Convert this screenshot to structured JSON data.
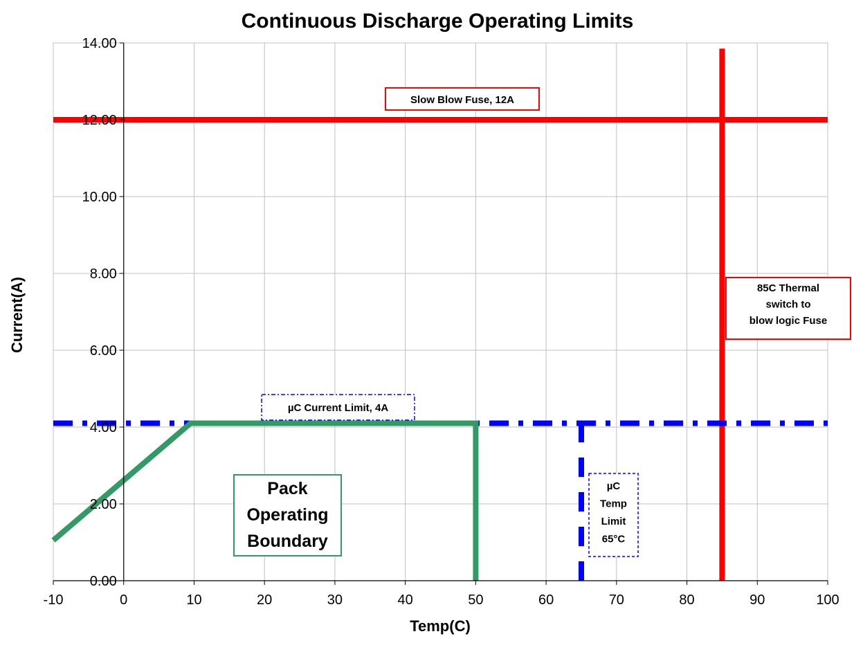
{
  "chart_data": {
    "type": "line",
    "title": "Continuous Discharge Operating Limits",
    "xlabel": "Temp(C)",
    "ylabel": "Current(A)",
    "xlim": [
      -10,
      100
    ],
    "ylim": [
      0,
      14
    ],
    "xticks": [
      "-10",
      "0",
      "10",
      "20",
      "30",
      "40",
      "50",
      "60",
      "70",
      "80",
      "90",
      "100"
    ],
    "yticks": [
      "0.00",
      "2.00",
      "4.00",
      "6.00",
      "8.00",
      "10.00",
      "12.00",
      "14.00"
    ],
    "grid": true,
    "series": [
      {
        "name": "",
        "style": "solid",
        "color": "#ff0000",
        "points": [
          [
            -10,
            12
          ],
          [
            100,
            12
          ]
        ]
      },
      {
        "name": "",
        "style": "solid",
        "color": "#ff0000",
        "points": [
          [
            85,
            0
          ],
          [
            85,
            13.85
          ]
        ]
      },
      {
        "name": "",
        "style": "dashdot",
        "color": "#0000ff",
        "points": [
          [
            -10,
            4.1
          ],
          [
            100,
            4.1
          ]
        ]
      },
      {
        "name": "",
        "style": "dashed",
        "color": "#0000ff",
        "points": [
          [
            65,
            0
          ],
          [
            65,
            4.1
          ]
        ]
      },
      {
        "name": "",
        "style": "solid",
        "color": "#339966",
        "points": [
          [
            -10,
            1.05
          ],
          [
            9.5,
            4.1
          ],
          [
            50,
            4.1
          ],
          [
            50,
            0
          ]
        ]
      }
    ],
    "annotations": [
      {
        "lines": [
          "Slow Blow Fuse, 12A"
        ],
        "border": "#ff0000",
        "border_style": "solid"
      },
      {
        "lines": [
          "85C Thermal",
          "switch to",
          "blow logic Fuse"
        ],
        "border": "#ff0000",
        "border_style": "solid"
      },
      {
        "lines": [
          "µC Current Limit, 4A"
        ],
        "border": "#0000ff",
        "border_style": "dashdot"
      },
      {
        "lines": [
          "µC",
          "Temp",
          "Limit",
          "65°C"
        ],
        "border": "#0000ff",
        "border_style": "dashed"
      },
      {
        "lines": [
          "Pack",
          "Operating",
          "Boundary"
        ],
        "border": "#339966",
        "border_style": "solid"
      }
    ]
  }
}
